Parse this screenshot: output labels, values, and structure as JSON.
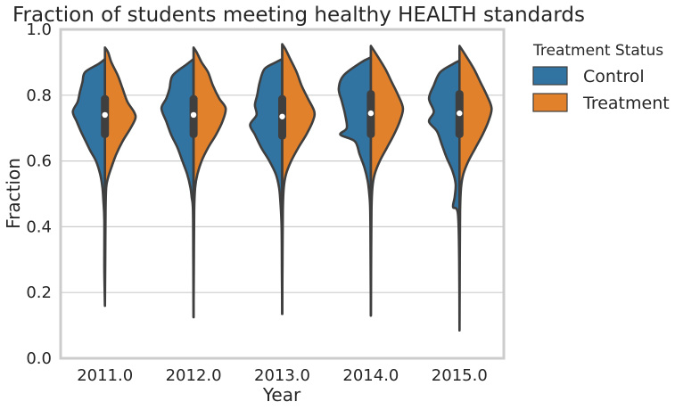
{
  "chart_data": {
    "type": "violin",
    "title": "Fraction of students meeting healthy HEALTH standards",
    "xlabel": "Year",
    "ylabel": "Fraction",
    "ylim": [
      0,
      1
    ],
    "yticks": [
      "0.0",
      "0.2",
      "0.4",
      "0.6",
      "0.8",
      "1.0"
    ],
    "categories": [
      "2011.0",
      "2012.0",
      "2013.0",
      "2014.0",
      "2015.0"
    ],
    "grid": "horizontal",
    "legend": {
      "title": "Treatment Status",
      "position": "outside-right",
      "entries": [
        {
          "label": "Control",
          "color": "#3274a1"
        },
        {
          "label": "Treatment",
          "color": "#e1812c"
        }
      ]
    },
    "series": [
      {
        "name": "Control",
        "color": "#3274a1",
        "side": "left"
      },
      {
        "name": "Treatment",
        "color": "#e1812c",
        "side": "right"
      }
    ],
    "groups": [
      {
        "year": "2011.0",
        "min": 0.16,
        "max": 0.945,
        "q1": 0.67,
        "median": 0.74,
        "q3": 0.8,
        "control_density": [
          [
            0.16,
            0
          ],
          [
            0.27,
            0.02
          ],
          [
            0.42,
            0.02
          ],
          [
            0.48,
            0.05
          ],
          [
            0.52,
            0.08
          ],
          [
            0.56,
            0.15
          ],
          [
            0.6,
            0.28
          ],
          [
            0.63,
            0.45
          ],
          [
            0.66,
            0.6
          ],
          [
            0.69,
            0.75
          ],
          [
            0.72,
            0.88
          ],
          [
            0.75,
            1.0
          ],
          [
            0.78,
            0.85
          ],
          [
            0.81,
            0.78
          ],
          [
            0.84,
            0.7
          ],
          [
            0.87,
            0.62
          ],
          [
            0.895,
            0.2
          ],
          [
            0.91,
            0
          ]
        ],
        "treatment_density": [
          [
            0.16,
            0
          ],
          [
            0.3,
            0.01
          ],
          [
            0.45,
            0.02
          ],
          [
            0.52,
            0.04
          ],
          [
            0.55,
            0.1
          ],
          [
            0.58,
            0.2
          ],
          [
            0.62,
            0.35
          ],
          [
            0.66,
            0.55
          ],
          [
            0.7,
            0.8
          ],
          [
            0.73,
            0.95
          ],
          [
            0.75,
            0.9
          ],
          [
            0.78,
            0.7
          ],
          [
            0.82,
            0.55
          ],
          [
            0.86,
            0.4
          ],
          [
            0.9,
            0.2
          ],
          [
            0.93,
            0.1
          ],
          [
            0.945,
            0
          ]
        ]
      },
      {
        "year": "2012.0",
        "min": 0.125,
        "max": 0.945,
        "q1": 0.67,
        "median": 0.74,
        "q3": 0.8,
        "control_density": [
          [
            0.125,
            0
          ],
          [
            0.3,
            0.01
          ],
          [
            0.45,
            0.02
          ],
          [
            0.49,
            0.06
          ],
          [
            0.52,
            0.1
          ],
          [
            0.56,
            0.2
          ],
          [
            0.6,
            0.35
          ],
          [
            0.64,
            0.5
          ],
          [
            0.68,
            0.7
          ],
          [
            0.72,
            0.85
          ],
          [
            0.76,
            1.0
          ],
          [
            0.79,
            0.85
          ],
          [
            0.82,
            0.75
          ],
          [
            0.86,
            0.65
          ],
          [
            0.895,
            0.2
          ],
          [
            0.91,
            0
          ]
        ],
        "treatment_density": [
          [
            0.125,
            0
          ],
          [
            0.3,
            0.01
          ],
          [
            0.45,
            0.02
          ],
          [
            0.52,
            0.05
          ],
          [
            0.56,
            0.12
          ],
          [
            0.6,
            0.25
          ],
          [
            0.64,
            0.45
          ],
          [
            0.68,
            0.7
          ],
          [
            0.72,
            0.9
          ],
          [
            0.76,
            1.0
          ],
          [
            0.79,
            0.8
          ],
          [
            0.83,
            0.6
          ],
          [
            0.87,
            0.45
          ],
          [
            0.9,
            0.25
          ],
          [
            0.93,
            0.1
          ],
          [
            0.945,
            0
          ]
        ]
      },
      {
        "year": "2013.0",
        "min": 0.135,
        "max": 0.955,
        "q1": 0.665,
        "median": 0.735,
        "q3": 0.8,
        "control_density": [
          [
            0.135,
            0
          ],
          [
            0.25,
            0.01
          ],
          [
            0.4,
            0.02
          ],
          [
            0.48,
            0.06
          ],
          [
            0.52,
            0.1
          ],
          [
            0.56,
            0.2
          ],
          [
            0.6,
            0.4
          ],
          [
            0.64,
            0.65
          ],
          [
            0.68,
            0.85
          ],
          [
            0.71,
            1.0
          ],
          [
            0.74,
            0.8
          ],
          [
            0.77,
            0.85
          ],
          [
            0.8,
            0.78
          ],
          [
            0.84,
            0.7
          ],
          [
            0.88,
            0.55
          ],
          [
            0.9,
            0.2
          ],
          [
            0.91,
            0
          ]
        ],
        "treatment_density": [
          [
            0.135,
            0
          ],
          [
            0.3,
            0.01
          ],
          [
            0.45,
            0.02
          ],
          [
            0.52,
            0.05
          ],
          [
            0.56,
            0.12
          ],
          [
            0.6,
            0.28
          ],
          [
            0.64,
            0.5
          ],
          [
            0.68,
            0.75
          ],
          [
            0.72,
            0.95
          ],
          [
            0.75,
            1.0
          ],
          [
            0.79,
            0.8
          ],
          [
            0.83,
            0.6
          ],
          [
            0.87,
            0.45
          ],
          [
            0.91,
            0.25
          ],
          [
            0.94,
            0.1
          ],
          [
            0.955,
            0
          ]
        ]
      },
      {
        "year": "2014.0",
        "min": 0.13,
        "max": 0.95,
        "q1": 0.67,
        "median": 0.745,
        "q3": 0.815,
        "control_density": [
          [
            0.13,
            0
          ],
          [
            0.32,
            0.01
          ],
          [
            0.45,
            0.02
          ],
          [
            0.5,
            0.05
          ],
          [
            0.54,
            0.1
          ],
          [
            0.58,
            0.2
          ],
          [
            0.62,
            0.35
          ],
          [
            0.66,
            0.5
          ],
          [
            0.68,
            0.95
          ],
          [
            0.7,
            0.75
          ],
          [
            0.74,
            0.8
          ],
          [
            0.78,
            0.9
          ],
          [
            0.82,
            1.0
          ],
          [
            0.86,
            0.85
          ],
          [
            0.9,
            0.3
          ],
          [
            0.915,
            0
          ]
        ],
        "treatment_density": [
          [
            0.13,
            0
          ],
          [
            0.3,
            0.01
          ],
          [
            0.45,
            0.02
          ],
          [
            0.52,
            0.05
          ],
          [
            0.56,
            0.12
          ],
          [
            0.6,
            0.28
          ],
          [
            0.64,
            0.5
          ],
          [
            0.68,
            0.72
          ],
          [
            0.72,
            0.9
          ],
          [
            0.76,
            1.0
          ],
          [
            0.8,
            0.85
          ],
          [
            0.84,
            0.65
          ],
          [
            0.88,
            0.45
          ],
          [
            0.92,
            0.2
          ],
          [
            0.95,
            0
          ]
        ]
      },
      {
        "year": "2015.0",
        "min": 0.085,
        "max": 0.95,
        "q1": 0.67,
        "median": 0.745,
        "q3": 0.815,
        "control_density": [
          [
            0.085,
            0
          ],
          [
            0.3,
            0.01
          ],
          [
            0.44,
            0.05
          ],
          [
            0.46,
            0.2
          ],
          [
            0.49,
            0.15
          ],
          [
            0.53,
            0.12
          ],
          [
            0.57,
            0.22
          ],
          [
            0.61,
            0.4
          ],
          [
            0.65,
            0.55
          ],
          [
            0.69,
            0.7
          ],
          [
            0.72,
            0.95
          ],
          [
            0.75,
            0.8
          ],
          [
            0.79,
            0.95
          ],
          [
            0.83,
            0.8
          ],
          [
            0.87,
            0.6
          ],
          [
            0.895,
            0.2
          ],
          [
            0.905,
            0
          ]
        ],
        "treatment_density": [
          [
            0.085,
            0
          ],
          [
            0.3,
            0.01
          ],
          [
            0.45,
            0.02
          ],
          [
            0.52,
            0.05
          ],
          [
            0.56,
            0.12
          ],
          [
            0.6,
            0.28
          ],
          [
            0.64,
            0.5
          ],
          [
            0.68,
            0.72
          ],
          [
            0.72,
            0.9
          ],
          [
            0.76,
            1.0
          ],
          [
            0.8,
            0.85
          ],
          [
            0.84,
            0.65
          ],
          [
            0.88,
            0.45
          ],
          [
            0.92,
            0.2
          ],
          [
            0.95,
            0
          ]
        ]
      }
    ]
  }
}
